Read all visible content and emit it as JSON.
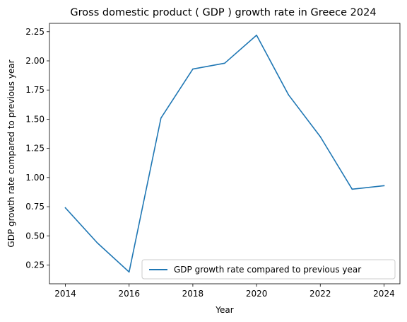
{
  "chart_data": {
    "type": "line",
    "title": "Gross domestic product ( GDP ) growth rate in Greece 2024",
    "xlabel": "Year",
    "ylabel": "GDP growth rate compared to previous year",
    "x": [
      2014,
      2015,
      2016,
      2017,
      2018,
      2019,
      2020,
      2021,
      2022,
      2023,
      2024
    ],
    "series": [
      {
        "name": "GDP growth rate compared to previous year",
        "color": "#1f77b4",
        "values": [
          0.74,
          0.44,
          0.19,
          1.51,
          1.93,
          1.98,
          2.22,
          1.71,
          1.35,
          0.9,
          0.93
        ]
      }
    ],
    "xticks": [
      "2014",
      "2016",
      "2018",
      "2020",
      "2022",
      "2024"
    ],
    "yticks": [
      "0.25",
      "0.50",
      "0.75",
      "1.00",
      "1.25",
      "1.50",
      "1.75",
      "2.00",
      "2.25"
    ],
    "xlim": [
      2013.5,
      2024.5
    ],
    "ylim": [
      0.089,
      2.3215
    ],
    "grid": false,
    "legend_position": "lower-right"
  }
}
